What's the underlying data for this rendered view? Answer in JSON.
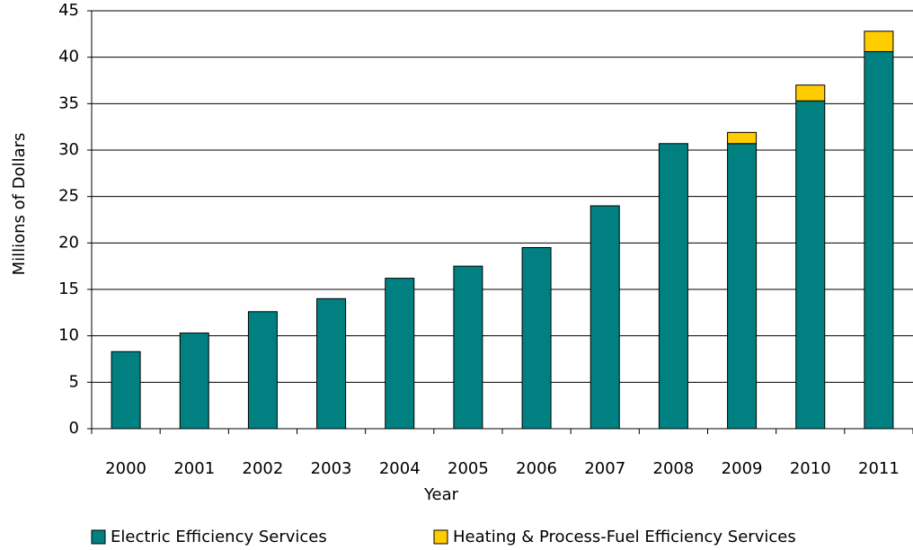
{
  "chart_data": {
    "type": "stacked_bar",
    "x_label": "Year",
    "y_label": "Millions of Dollars",
    "categories": [
      "2000",
      "2001",
      "2002",
      "2003",
      "2004",
      "2005",
      "2006",
      "2007",
      "2008",
      "2009",
      "2010",
      "2011"
    ],
    "series": [
      {
        "name": "Electric Efficiency Services",
        "color": "#008080",
        "values": [
          8.3,
          10.3,
          12.6,
          14.0,
          16.2,
          17.5,
          19.5,
          24.0,
          30.7,
          30.7,
          35.3,
          40.6
        ]
      },
      {
        "name": "Heating & Process-Fuel Efficiency Services",
        "color": "#ffcc00",
        "values": [
          null,
          null,
          null,
          null,
          null,
          null,
          null,
          null,
          null,
          1.2,
          1.7,
          2.2
        ]
      }
    ],
    "ylim": [
      0,
      45
    ],
    "yticks": [
      0,
      5,
      10,
      15,
      20,
      25,
      30,
      35,
      40,
      45
    ],
    "grid": true
  }
}
